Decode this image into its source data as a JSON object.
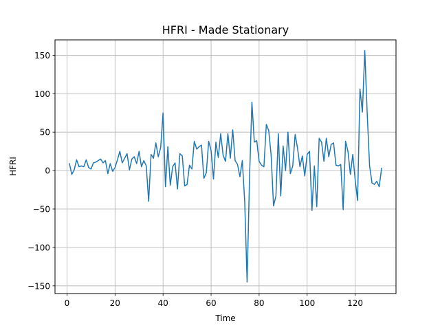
{
  "chart_data": {
    "type": "line",
    "title": "HFRI - Made Stationary",
    "xlabel": "Time",
    "ylabel": "HFRI",
    "xlim": [
      -5,
      137
    ],
    "ylim": [
      -160,
      170
    ],
    "grid": true,
    "x_ticks": [
      0,
      20,
      40,
      60,
      80,
      100,
      120
    ],
    "y_ticks": [
      -150,
      -100,
      -50,
      0,
      50,
      100,
      150
    ],
    "series": [
      {
        "color": "#1f77b4",
        "x": [
          1,
          2,
          3,
          4,
          5,
          6,
          7,
          8,
          9,
          10,
          11,
          12,
          13,
          14,
          15,
          16,
          17,
          18,
          19,
          20,
          21,
          22,
          23,
          24,
          25,
          26,
          27,
          28,
          29,
          30,
          31,
          32,
          33,
          34,
          35,
          36,
          37,
          38,
          39,
          40,
          41,
          42,
          43,
          44,
          45,
          46,
          47,
          48,
          49,
          50,
          51,
          52,
          53,
          54,
          55,
          56,
          57,
          58,
          59,
          60,
          61,
          62,
          63,
          64,
          65,
          66,
          67,
          68,
          69,
          70,
          71,
          72,
          73,
          74,
          75,
          76,
          77,
          78,
          79,
          80,
          81,
          82,
          83,
          84,
          85,
          86,
          87,
          88,
          89,
          90,
          91,
          92,
          93,
          94,
          95,
          96,
          97,
          98,
          99,
          100,
          101,
          102,
          103,
          104,
          105,
          106,
          107,
          108,
          109,
          110,
          111,
          112,
          113,
          114,
          115,
          116,
          117,
          118,
          119,
          120,
          121,
          122,
          123,
          124,
          125,
          126,
          127,
          128,
          129,
          130,
          131
        ],
        "values": [
          9,
          -5,
          1,
          14,
          5,
          6,
          5,
          14,
          4,
          2,
          10,
          11,
          13,
          15,
          10,
          13,
          -4,
          9,
          -1,
          4,
          14,
          25,
          10,
          16,
          22,
          1,
          15,
          18,
          9,
          25,
          5,
          13,
          6,
          -40,
          21,
          16,
          36,
          18,
          30,
          75,
          -21,
          31,
          -19,
          5,
          10,
          -24,
          22,
          19,
          -20,
          -18,
          7,
          2,
          38,
          28,
          31,
          33,
          -10,
          -3,
          38,
          26,
          -11,
          37,
          17,
          48,
          20,
          12,
          48,
          16,
          53,
          13,
          8,
          -8,
          13,
          -40,
          -145,
          -10,
          89,
          37,
          39,
          12,
          7,
          5,
          60,
          52,
          20,
          -46,
          -33,
          48,
          -33,
          32,
          0,
          50,
          -4,
          6,
          47,
          29,
          5,
          19,
          -7,
          21,
          25,
          -52,
          6,
          -47,
          42,
          37,
          12,
          42,
          18,
          34,
          36,
          7,
          6,
          8,
          -51,
          38,
          25,
          -5,
          21,
          -12,
          -39,
          106,
          76,
          156,
          75,
          6,
          -16,
          -18,
          -14,
          -21,
          3
        ]
      }
    ]
  }
}
